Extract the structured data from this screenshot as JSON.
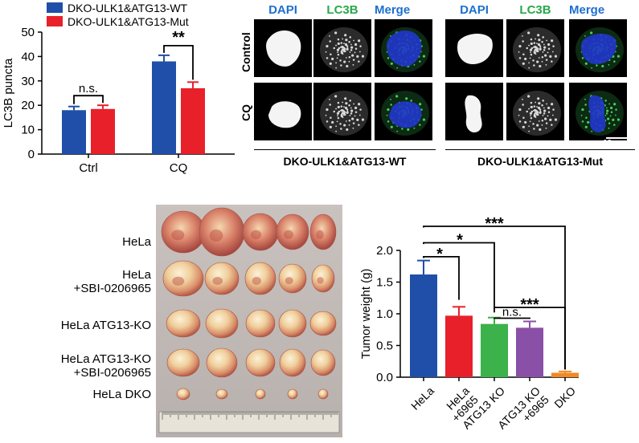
{
  "colors": {
    "wt": "#1f4fa8",
    "mut": "#e8202a",
    "hela": "#1f4fa8",
    "hela6965": "#e8202a",
    "atg13ko": "#3bb24a",
    "atg13ko6965": "#8a4fa6",
    "dko": "#f08a24",
    "dapi": "#1e6fd0",
    "lc3b": "#2aa84a",
    "merge": "#1e6fd0"
  },
  "chart_data": [
    {
      "type": "bar",
      "title": "",
      "xlabel": "",
      "ylabel": "LC3B puncta",
      "ylim": [
        0,
        50
      ],
      "yticks": [
        "0",
        "10",
        "20",
        "30",
        "40",
        "50"
      ],
      "categories": [
        "Ctrl",
        "CQ"
      ],
      "series": [
        {
          "name": "DKO-ULK1&ATG13-WT",
          "values": [
            18,
            38
          ],
          "errors": [
            1.5,
            2.5
          ]
        },
        {
          "name": "DKO-ULK1&ATG13-Mut",
          "values": [
            18.5,
            27
          ],
          "errors": [
            1.5,
            2.5
          ]
        }
      ],
      "annotations": [
        {
          "text": "n.s.",
          "category": "Ctrl"
        },
        {
          "text": "**",
          "category": "CQ"
        }
      ],
      "legend": "top-left",
      "grid": false
    },
    {
      "type": "bar",
      "title": "",
      "xlabel": "",
      "ylabel": "Tumor weight (g)",
      "ylim": [
        0,
        2.0
      ],
      "yticks": [
        "0.0",
        "0.5",
        "1.0",
        "1.5",
        "2.0"
      ],
      "categories": [
        "HeLa",
        "HeLa\n+6965",
        "ATG13 KO",
        "ATG13 KO\n+6965",
        "DKO"
      ],
      "values": [
        1.62,
        0.97,
        0.84,
        0.78,
        0.07
      ],
      "errors": [
        0.22,
        0.14,
        0.1,
        0.1,
        0.02
      ],
      "annotations": [
        {
          "text": "*",
          "from": "HeLa",
          "to": "HeLa\n+6965"
        },
        {
          "text": "*",
          "from": "HeLa",
          "to": "ATG13 KO"
        },
        {
          "text": "***",
          "from": "HeLa",
          "to": "DKO"
        },
        {
          "text": "***",
          "from": "ATG13 KO",
          "to": "DKO"
        },
        {
          "text": "n.s.",
          "from": "ATG13 KO",
          "to": "ATG13 KO\n+6965"
        }
      ],
      "grid": false
    }
  ],
  "microscopy": {
    "columns": [
      "DAPI",
      "LC3B",
      "Merge"
    ],
    "rows": [
      "Control",
      "CQ"
    ],
    "groups": [
      "DKO-ULK1&ATG13-WT",
      "DKO-ULK1&ATG13-Mut"
    ],
    "scale_bar": "10 μm"
  },
  "tumors": {
    "labels": [
      "HeLa",
      "HeLa\n+SBI-0206965",
      "HeLa ATG13-KO",
      "HeLa ATG13-KO\n+SBI-0206965",
      "HeLa DKO"
    ]
  }
}
